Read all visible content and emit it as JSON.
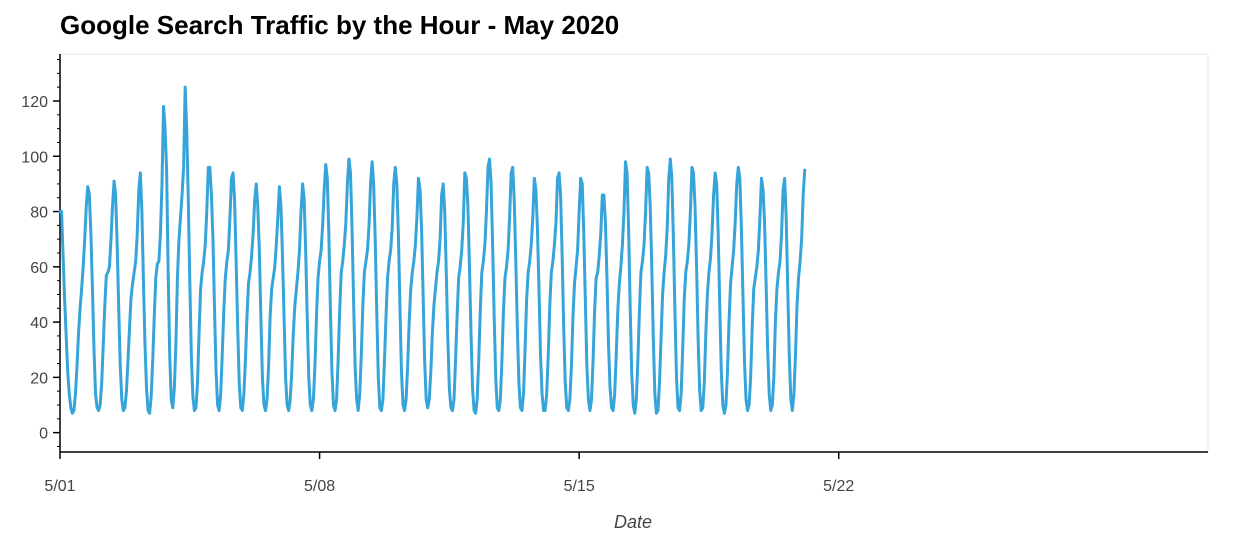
{
  "chart_data": {
    "type": "line",
    "title": "Google Search Traffic by the Hour - May 2020",
    "xlabel": "Date",
    "ylabel": "",
    "xlim": [
      "2020-05-01",
      "2020-05-31T23:00"
    ],
    "ylim": [
      -7,
      137
    ],
    "x_ticks": [
      {
        "date": "2020-05-01",
        "label": "5/01"
      },
      {
        "date": "2020-05-08",
        "label": "5/08"
      },
      {
        "date": "2020-05-15",
        "label": "5/15"
      },
      {
        "date": "2020-05-22",
        "label": "5/22"
      }
    ],
    "y_ticks": [
      0,
      20,
      40,
      60,
      80,
      100,
      120
    ],
    "grid": false,
    "color": "#36a4d9",
    "series": [
      {
        "x_start": "2020-05-01T00:00",
        "x_step": "1 hour",
        "values": [
          80,
          80,
          64,
          48,
          35,
          22,
          14,
          9,
          7,
          8,
          14,
          24,
          36,
          45,
          52,
          60,
          70,
          82,
          89,
          86,
          72,
          52,
          30,
          14,
          9,
          8,
          10,
          18,
          32,
          46,
          57,
          58,
          60,
          70,
          82,
          91,
          86,
          68,
          45,
          24,
          12,
          8,
          9,
          15,
          26,
          38,
          49,
          54,
          58,
          62,
          72,
          88,
          94,
          80,
          55,
          32,
          16,
          8,
          7,
          13,
          26,
          42,
          56,
          61,
          62,
          72,
          90,
          118,
          110,
          95,
          58,
          28,
          12,
          9,
          16,
          32,
          56,
          70,
          78,
          86,
          96,
          125,
          110,
          85,
          55,
          28,
          13,
          8,
          9,
          18,
          36,
          52,
          58,
          62,
          68,
          80,
          96,
          96,
          86,
          70,
          45,
          22,
          10,
          8,
          14,
          28,
          44,
          56,
          62,
          66,
          78,
          92,
          94,
          84,
          62,
          38,
          18,
          9,
          8,
          14,
          26,
          42,
          54,
          58,
          64,
          72,
          84,
          90,
          82,
          66,
          42,
          20,
          10,
          8,
          12,
          24,
          42,
          52,
          56,
          60,
          68,
          78,
          89,
          82,
          64,
          42,
          20,
          10,
          8,
          12,
          22,
          36,
          46,
          52,
          58,
          66,
          80,
          90,
          85,
          66,
          42,
          20,
          10,
          8,
          12,
          24,
          42,
          56,
          62,
          66,
          75,
          88,
          97,
          92,
          72,
          45,
          22,
          10,
          8,
          12,
          26,
          44,
          58,
          62,
          68,
          76,
          90,
          99,
          94,
          74,
          48,
          24,
          12,
          8,
          14,
          28,
          46,
          58,
          62,
          66,
          75,
          90,
          98,
          90,
          70,
          44,
          20,
          9,
          8,
          12,
          26,
          42,
          56,
          62,
          66,
          74,
          90,
          96,
          90,
          72,
          46,
          22,
          10,
          8,
          12,
          24,
          40,
          52,
          58,
          62,
          68,
          78,
          92,
          88,
          74,
          50,
          26,
          12,
          9,
          12,
          22,
          36,
          46,
          52,
          58,
          62,
          70,
          86,
          90,
          80,
          58,
          34,
          16,
          9,
          8,
          12,
          26,
          42,
          56,
          60,
          66,
          76,
          94,
          92,
          82,
          60,
          36,
          16,
          8,
          7,
          12,
          26,
          44,
          58,
          62,
          68,
          80,
          96,
          99,
          90,
          68,
          42,
          20,
          9,
          8,
          12,
          26,
          44,
          56,
          60,
          66,
          78,
          94,
          96,
          84,
          62,
          38,
          18,
          9,
          8,
          14,
          30,
          48,
          58,
          62,
          68,
          78,
          92,
          88,
          74,
          52,
          28,
          14,
          8,
          8,
          14,
          28,
          46,
          58,
          62,
          68,
          76,
          92,
          94,
          86,
          64,
          38,
          18,
          9,
          8,
          12,
          24,
          42,
          54,
          60,
          66,
          80,
          92,
          90,
          72,
          48,
          24,
          12,
          8,
          12,
          26,
          44,
          56,
          58,
          64,
          72,
          86,
          86,
          76,
          56,
          32,
          16,
          9,
          8,
          14,
          28,
          44,
          54,
          60,
          68,
          80,
          98,
          94,
          74,
          46,
          22,
          10,
          7,
          12,
          26,
          44,
          58,
          62,
          68,
          80,
          96,
          94,
          82,
          60,
          34,
          14,
          7,
          8,
          18,
          34,
          50,
          58,
          64,
          74,
          92,
          99,
          92,
          70,
          44,
          20,
          9,
          8,
          14,
          30,
          48,
          58,
          62,
          68,
          80,
          96,
          94,
          82,
          60,
          34,
          15,
          8,
          9,
          18,
          36,
          50,
          58,
          63,
          72,
          86,
          94,
          90,
          72,
          46,
          22,
          10,
          7,
          10,
          22,
          40,
          54,
          60,
          66,
          76,
          90,
          96,
          92,
          74,
          50,
          26,
          12,
          8,
          10,
          20,
          38,
          52,
          56,
          60,
          66,
          78,
          92,
          88,
          76,
          54,
          30,
          14,
          8,
          10,
          20,
          40,
          52,
          58,
          62,
          72,
          88,
          92,
          78,
          52,
          28,
          12,
          8,
          14,
          28,
          46,
          56,
          62,
          70,
          86,
          95
        ]
      }
    ]
  }
}
